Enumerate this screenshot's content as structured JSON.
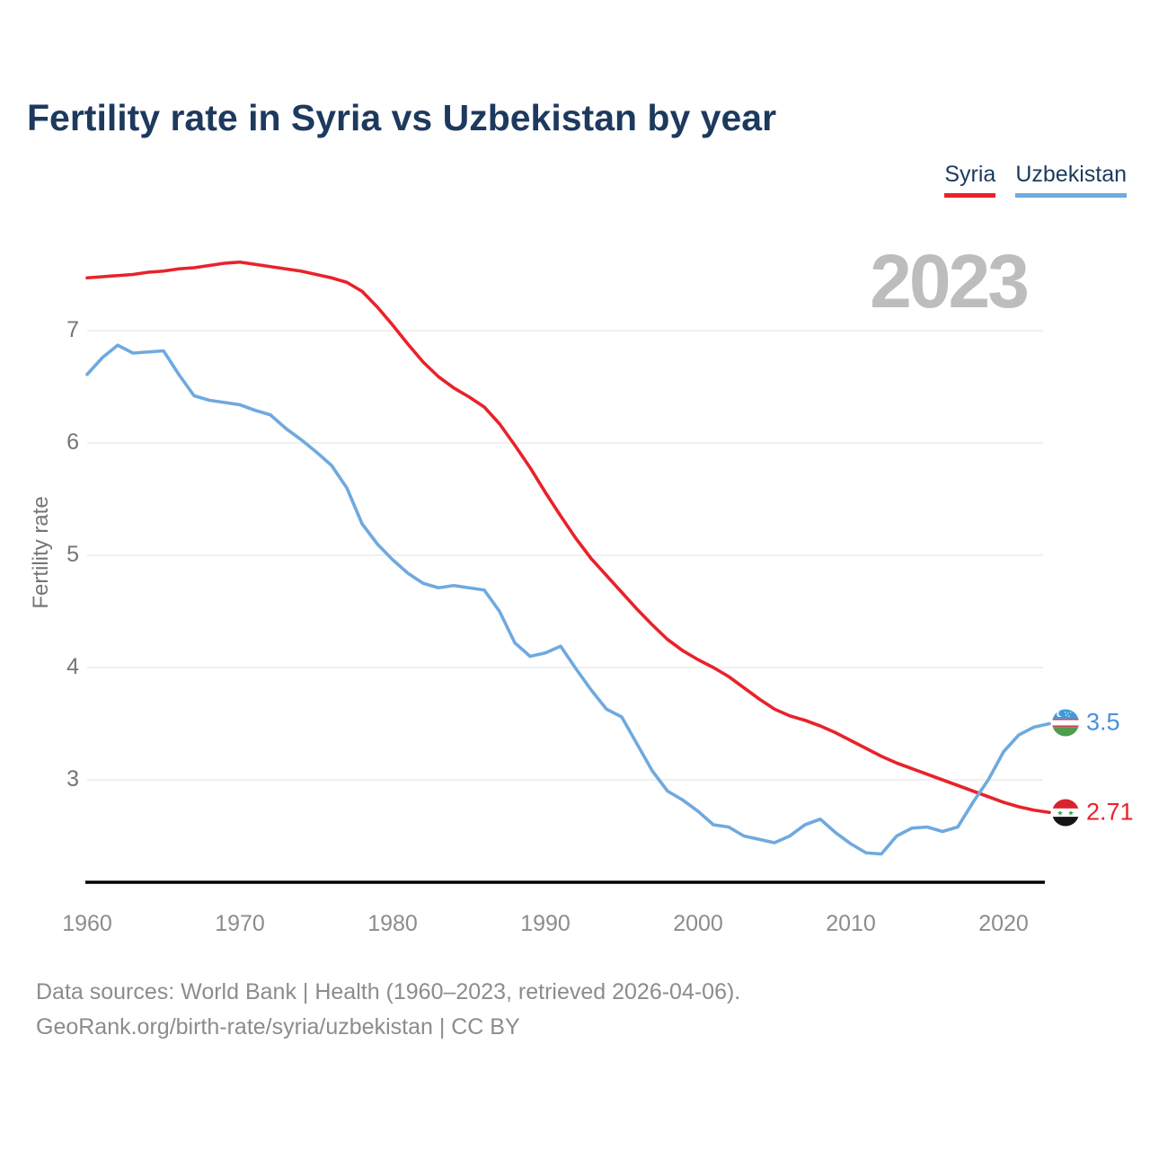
{
  "title": "Fertility rate in Syria vs Uzbekistan by year",
  "legend": {
    "items": [
      {
        "label": "Syria",
        "color": "#e9222b"
      },
      {
        "label": "Uzbekistan",
        "color": "#6fa9df"
      }
    ]
  },
  "watermark": "2023",
  "axes": {
    "y_label": "Fertility rate",
    "y_ticks": [
      "7",
      "6",
      "5",
      "4",
      "3"
    ],
    "x_ticks": [
      "1960",
      "1970",
      "1980",
      "1990",
      "2000",
      "2010",
      "2020"
    ]
  },
  "end_labels": {
    "uzbekistan": {
      "value": "3.5",
      "color": "#4a90d9",
      "flag": "uzbekistan-flag"
    },
    "syria": {
      "value": "2.71",
      "color": "#e9222b",
      "flag": "syria-flag"
    }
  },
  "footer": {
    "line1": "Data sources: World Bank | Health (1960–2023, retrieved 2026-04-06).",
    "line2": "GeoRank.org/birth-rate/syria/uzbekistan | CC BY"
  },
  "chart_data": {
    "type": "line",
    "title": "Fertility rate in Syria vs Uzbekistan by year",
    "xlabel": "",
    "ylabel": "Fertility rate",
    "x_range": [
      1960,
      2023
    ],
    "ylim": [
      2.1,
      7.7
    ],
    "y_ticks": [
      3,
      4,
      5,
      6,
      7
    ],
    "grid": "horizontal",
    "legend_position": "top-right",
    "colors": {
      "grid": "#ebebeb",
      "axis": "#000000",
      "tick_text": "#757575",
      "watermark": "#bdbdbd",
      "title_text": "#1d3a5e",
      "footer_text": "#8c8c8c"
    },
    "x": [
      1960,
      1961,
      1962,
      1963,
      1964,
      1965,
      1966,
      1967,
      1968,
      1969,
      1970,
      1971,
      1972,
      1973,
      1974,
      1975,
      1976,
      1977,
      1978,
      1979,
      1980,
      1981,
      1982,
      1983,
      1984,
      1985,
      1986,
      1987,
      1988,
      1989,
      1990,
      1991,
      1992,
      1993,
      1994,
      1995,
      1996,
      1997,
      1998,
      1999,
      2000,
      2001,
      2002,
      2003,
      2004,
      2005,
      2006,
      2007,
      2008,
      2009,
      2010,
      2011,
      2012,
      2013,
      2014,
      2015,
      2016,
      2017,
      2018,
      2019,
      2020,
      2021,
      2022,
      2023
    ],
    "series": [
      {
        "name": "Syria",
        "color": "#e9222b",
        "end_value": 2.71,
        "values": [
          7.47,
          7.48,
          7.49,
          7.5,
          7.52,
          7.53,
          7.55,
          7.56,
          7.58,
          7.6,
          7.61,
          7.59,
          7.57,
          7.55,
          7.53,
          7.5,
          7.47,
          7.43,
          7.35,
          7.21,
          7.05,
          6.88,
          6.72,
          6.59,
          6.49,
          6.41,
          6.32,
          6.17,
          5.98,
          5.78,
          5.56,
          5.35,
          5.15,
          4.97,
          4.82,
          4.67,
          4.52,
          4.38,
          4.25,
          4.15,
          4.07,
          4.0,
          3.92,
          3.82,
          3.72,
          3.63,
          3.57,
          3.53,
          3.48,
          3.42,
          3.35,
          3.28,
          3.21,
          3.15,
          3.1,
          3.05,
          3.0,
          2.95,
          2.9,
          2.85,
          2.8,
          2.76,
          2.73,
          2.71
        ]
      },
      {
        "name": "Uzbekistan",
        "color": "#6fa9df",
        "end_value": 3.5,
        "values": [
          6.61,
          6.76,
          6.87,
          6.8,
          6.81,
          6.82,
          6.61,
          6.42,
          6.38,
          6.36,
          6.34,
          6.29,
          6.25,
          6.13,
          6.03,
          5.92,
          5.8,
          5.6,
          5.28,
          5.1,
          4.96,
          4.84,
          4.75,
          4.71,
          4.73,
          4.71,
          4.69,
          4.5,
          4.22,
          4.1,
          4.13,
          4.19,
          3.99,
          3.8,
          3.63,
          3.56,
          3.32,
          3.08,
          2.9,
          2.82,
          2.72,
          2.6,
          2.58,
          2.5,
          2.47,
          2.44,
          2.5,
          2.6,
          2.65,
          2.53,
          2.43,
          2.35,
          2.34,
          2.5,
          2.57,
          2.58,
          2.54,
          2.58,
          2.8,
          3.0,
          3.25,
          3.4,
          3.47,
          3.5
        ]
      }
    ]
  }
}
